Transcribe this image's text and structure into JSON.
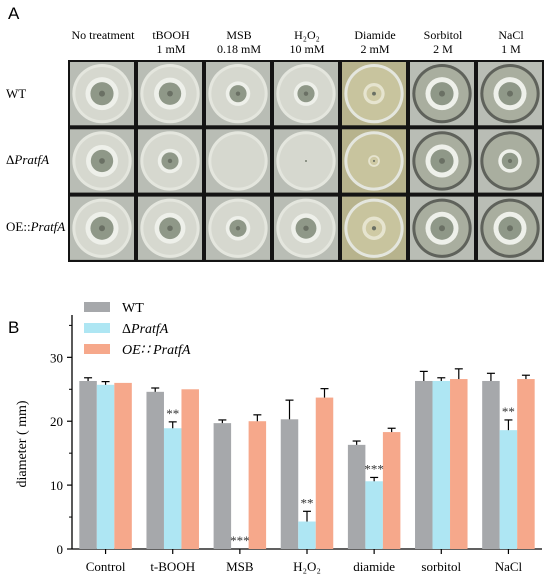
{
  "panel_a": {
    "letter": "A",
    "columns": [
      {
        "line1": "No treatment",
        "line2": ""
      },
      {
        "line1": "tBOOH",
        "line2": "1 mM"
      },
      {
        "line1": "MSB",
        "line2": "0.18 mM"
      },
      {
        "line1": "H₂O₂",
        "line2": "10 mM"
      },
      {
        "line1": "Diamide",
        "line2": "2 mM"
      },
      {
        "line1": "Sorbitol",
        "line2": "2 M"
      },
      {
        "line1": "NaCl",
        "line2": "1 M"
      }
    ],
    "rows": [
      {
        "prefix": "WT",
        "italic": ""
      },
      {
        "prefix": "Δ",
        "italic": "PratfA"
      },
      {
        "prefix": "OE::",
        "italic": "PratfA"
      }
    ],
    "plate_colors": {
      "plate_bg": "#b9bdb5",
      "agar_light": "#d6d8cf",
      "agar_dark": "#a9ae9f",
      "colony": "#8f9888",
      "yellow_agar": "#c8c49e"
    },
    "colony_sizes_relative": [
      [
        0.62,
        0.6,
        0.46,
        0.46,
        0.4,
        0.62,
        0.62
      ],
      [
        0.6,
        0.46,
        0.0,
        0.04,
        0.22,
        0.62,
        0.44
      ],
      [
        0.62,
        0.58,
        0.46,
        0.56,
        0.44,
        0.62,
        0.62
      ]
    ]
  },
  "chart_data": {
    "letter": "B",
    "type": "bar",
    "categories": [
      "Control",
      "t-BOOH",
      "MSB",
      "H₂O₂",
      "diamide",
      "sorbitol",
      "NaCl"
    ],
    "ylabel": "diameter ( mm)",
    "ylim": [
      0,
      30
    ],
    "yticks": [
      "0",
      "10",
      "20",
      "30"
    ],
    "series": [
      {
        "name": "WT",
        "color": "#a6a8ab",
        "values": [
          26.3,
          24.6,
          19.7,
          20.3,
          16.3,
          26.3,
          26.3
        ],
        "errors": [
          0.5,
          0.6,
          0.5,
          3.0,
          0.6,
          1.5,
          1.2
        ]
      },
      {
        "name": "ΔPratfA",
        "color": "#aee6f3",
        "values": [
          25.7,
          18.9,
          0,
          4.3,
          10.6,
          26.3,
          18.6
        ],
        "errors": [
          0.5,
          1.0,
          0,
          1.6,
          0.6,
          0.5,
          1.6
        ]
      },
      {
        "name": "OE∷PratfA",
        "color": "#f6a88b",
        "values": [
          26.0,
          25.0,
          20.0,
          23.7,
          18.3,
          26.6,
          26.6
        ],
        "errors": [
          0,
          0,
          1.0,
          1.4,
          0.6,
          1.6,
          0.6
        ]
      }
    ],
    "legend": [
      {
        "prefix": "",
        "italic": "",
        "text": "WT"
      },
      {
        "prefix": "Δ",
        "italic": "PratfA",
        "text": ""
      },
      {
        "prefix": "",
        "italic": "OE∷ PratfA",
        "text": ""
      }
    ],
    "annotations": [
      {
        "category": 1,
        "series": 1,
        "text": "**"
      },
      {
        "category": 2,
        "series": 1,
        "text": "***"
      },
      {
        "category": 3,
        "series": 1,
        "text": "**"
      },
      {
        "category": 4,
        "series": 1,
        "text": "***"
      },
      {
        "category": 6,
        "series": 1,
        "text": "**"
      }
    ]
  }
}
